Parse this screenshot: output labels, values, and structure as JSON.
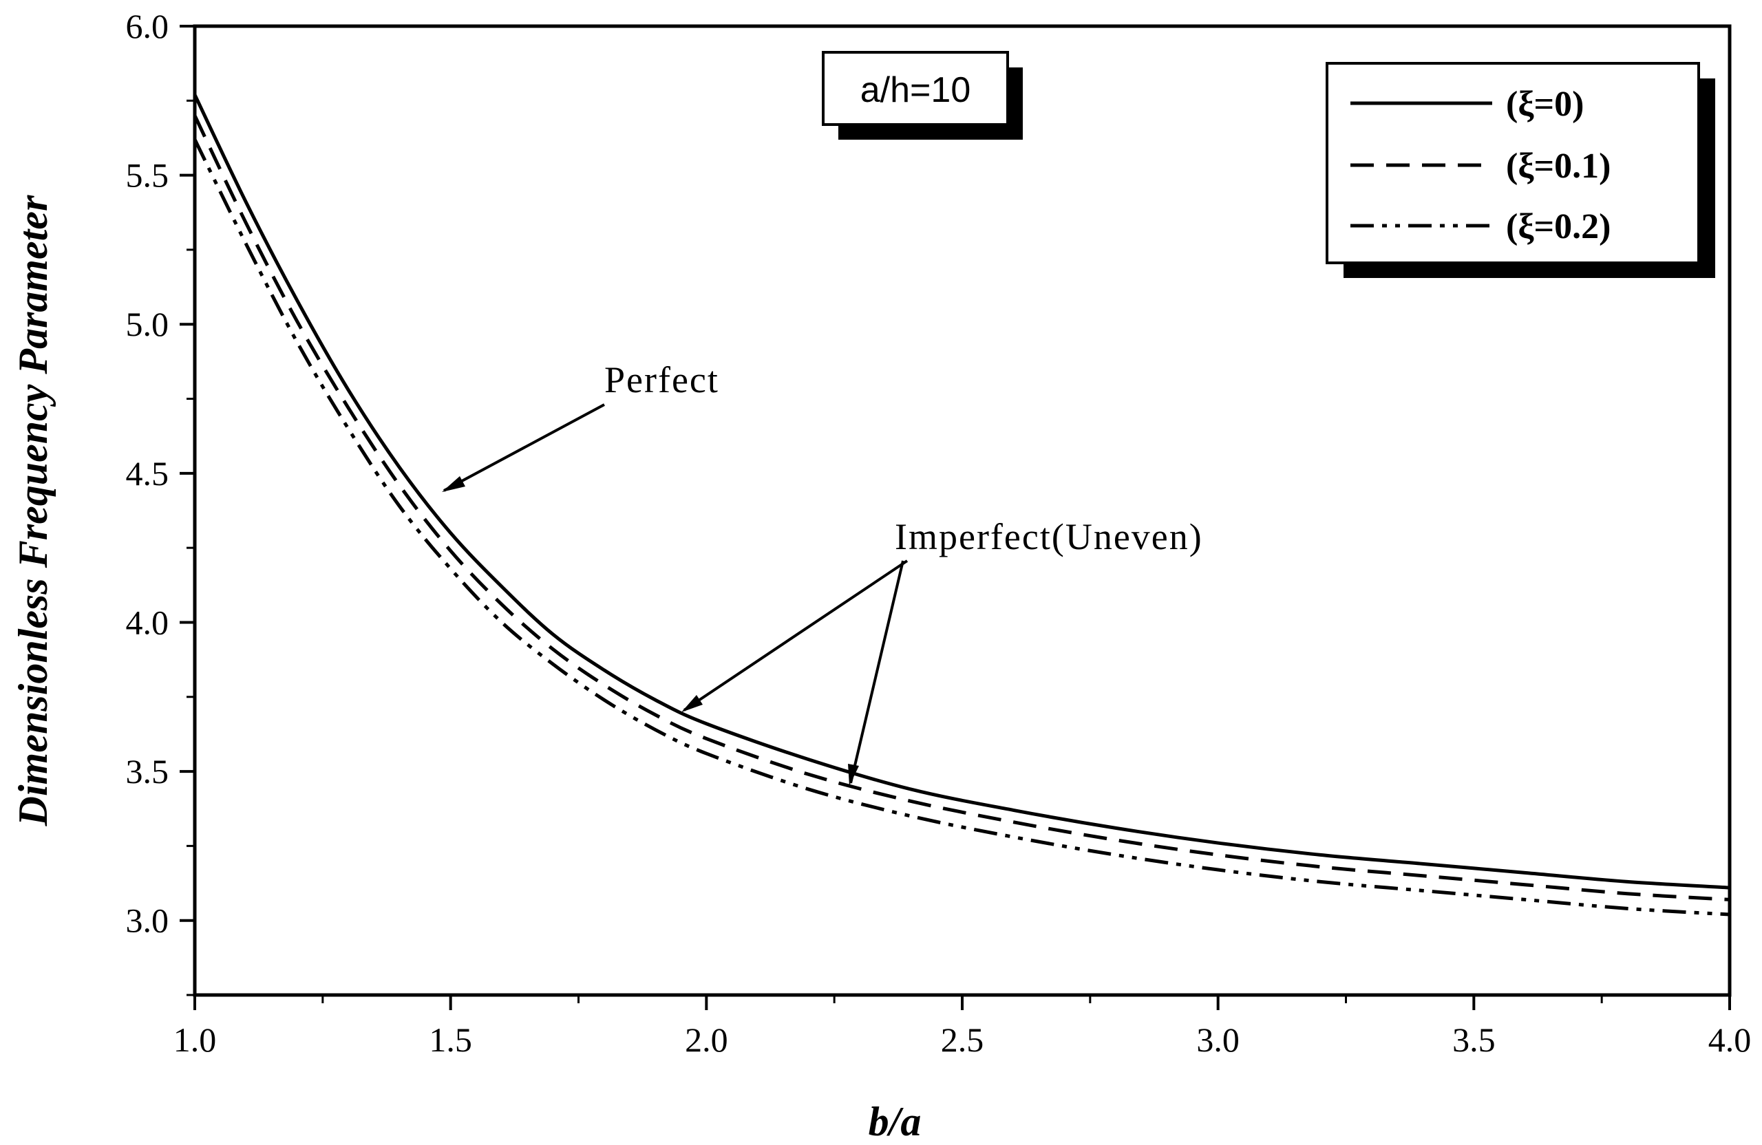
{
  "chart_data": {
    "type": "line",
    "xlabel": "b/a",
    "ylabel": "Dimensionless Frequency Parameter",
    "xlim": [
      1.0,
      4.0
    ],
    "ylim": [
      2.75,
      6.0
    ],
    "xticks": [
      "1.0",
      "1.5",
      "2.0",
      "2.5",
      "3.0",
      "3.5",
      "4.0"
    ],
    "yticks": [
      "3.0",
      "3.5",
      "4.0",
      "4.5",
      "5.0",
      "5.5",
      "6.0"
    ],
    "x": [
      1.0,
      1.1,
      1.2,
      1.3,
      1.4,
      1.5,
      1.6,
      1.7,
      1.8,
      1.9,
      2.0,
      2.2,
      2.4,
      2.6,
      2.8,
      3.0,
      3.2,
      3.4,
      3.6,
      3.8,
      4.0
    ],
    "series": [
      {
        "name": "(ξ=0)",
        "dash": "solid",
        "values": [
          5.77,
          5.41,
          5.08,
          4.78,
          4.52,
          4.3,
          4.12,
          3.96,
          3.84,
          3.74,
          3.66,
          3.54,
          3.44,
          3.37,
          3.31,
          3.26,
          3.22,
          3.19,
          3.16,
          3.13,
          3.11
        ]
      },
      {
        "name": "(ξ=0.1)",
        "dash": "dash",
        "values": [
          5.7,
          5.34,
          5.01,
          4.72,
          4.46,
          4.24,
          4.06,
          3.91,
          3.79,
          3.69,
          3.61,
          3.49,
          3.4,
          3.33,
          3.27,
          3.22,
          3.18,
          3.15,
          3.12,
          3.09,
          3.07
        ]
      },
      {
        "name": "(ξ=0.2)",
        "dash": "dashdotdot",
        "values": [
          5.62,
          5.27,
          4.94,
          4.65,
          4.39,
          4.18,
          4.0,
          3.86,
          3.74,
          3.64,
          3.56,
          3.44,
          3.35,
          3.28,
          3.22,
          3.17,
          3.13,
          3.1,
          3.07,
          3.04,
          3.02
        ]
      }
    ],
    "legend_position": "top-right",
    "grid": false,
    "annotations": {
      "box_label": "a/h=10",
      "perfect": "Perfect",
      "imperfect": "Imperfect(Uneven)"
    }
  }
}
